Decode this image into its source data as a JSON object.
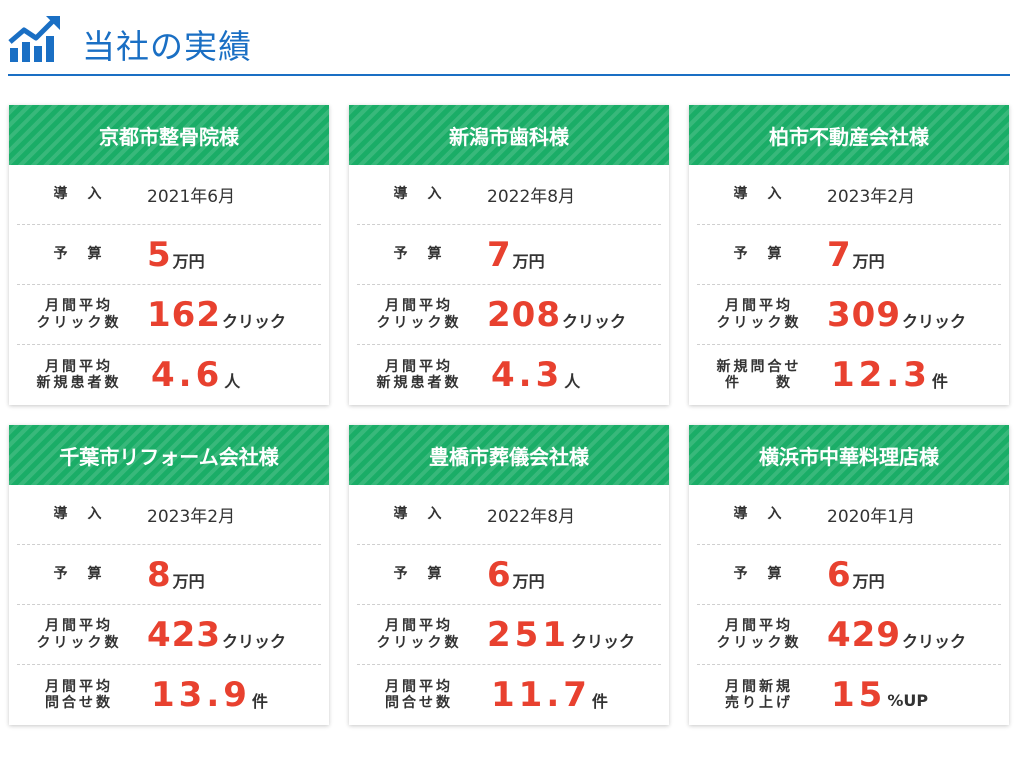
{
  "page": {
    "title": "当社の実績",
    "accent_color": "#1a6fc4",
    "card_header_color": "#1aad67",
    "value_color": "#e8412f",
    "icon": "chart-growth-icon"
  },
  "cards": [
    {
      "name": "京都市整骨院様",
      "rows": [
        {
          "label": "導　入",
          "text": "2021年6月"
        },
        {
          "label": "予　算",
          "value": "5",
          "unit": "万円"
        },
        {
          "label": "月間平均\nクリック数",
          "value": "162",
          "unit": "クリック"
        },
        {
          "label": "月間平均\n新規患者数",
          "value": "4.6",
          "unit": "人"
        }
      ]
    },
    {
      "name": "新潟市歯科様",
      "rows": [
        {
          "label": "導　入",
          "text": "2022年8月"
        },
        {
          "label": "予　算",
          "value": "7",
          "unit": "万円"
        },
        {
          "label": "月間平均\nクリック数",
          "value": "208",
          "unit": "クリック"
        },
        {
          "label": "月間平均\n新規患者数",
          "value": "4.3",
          "unit": "人"
        }
      ]
    },
    {
      "name": "柏市不動産会社様",
      "rows": [
        {
          "label": "導　入",
          "text": "2023年2月"
        },
        {
          "label": "予　算",
          "value": "7",
          "unit": "万円"
        },
        {
          "label": "月間平均\nクリック数",
          "value": "309",
          "unit": "クリック"
        },
        {
          "label": "新規問合せ\n件　　数",
          "value": "12.3",
          "unit": "件"
        }
      ]
    },
    {
      "name": "千葉市リフォーム会社様",
      "rows": [
        {
          "label": "導　入",
          "text": "2023年2月"
        },
        {
          "label": "予　算",
          "value": "8",
          "unit": "万円"
        },
        {
          "label": "月間平均\nクリック数",
          "value": "423",
          "unit": "クリック"
        },
        {
          "label": "月間平均\n問合せ数",
          "value": "13.9",
          "unit": "件"
        }
      ]
    },
    {
      "name": "豊橋市葬儀会社様",
      "rows": [
        {
          "label": "導　入",
          "text": "2022年8月"
        },
        {
          "label": "予　算",
          "value": "6",
          "unit": "万円"
        },
        {
          "label": "月間平均\nクリック数",
          "value": "251",
          "unit": "クリック"
        },
        {
          "label": "月間平均\n問合せ数",
          "value": "11.7",
          "unit": "件"
        }
      ]
    },
    {
      "name": "横浜市中華料理店様",
      "rows": [
        {
          "label": "導　入",
          "text": "2020年1月"
        },
        {
          "label": "予　算",
          "value": "6",
          "unit": "万円"
        },
        {
          "label": "月間平均\nクリック数",
          "value": "429",
          "unit": "クリック"
        },
        {
          "label": "月間新規\n売り上げ",
          "value": "15",
          "unit": "%UP"
        }
      ]
    }
  ]
}
